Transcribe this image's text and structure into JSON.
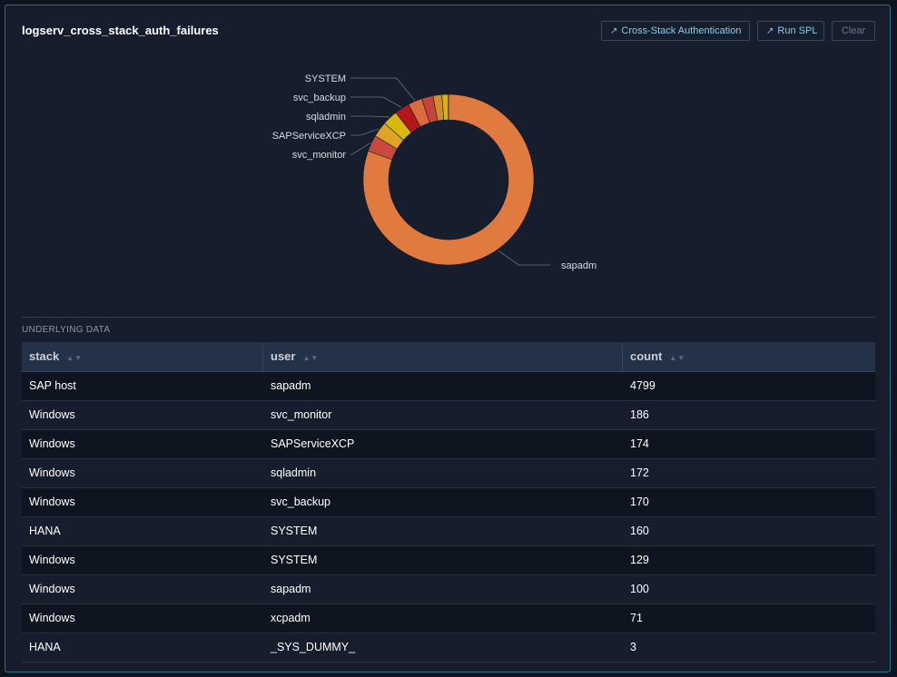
{
  "panel": {
    "title": "logserv_cross_stack_auth_failures",
    "buttons": {
      "cross_stack": "Cross-Stack Authentication",
      "run_spl": "Run SPL",
      "clear": "Clear",
      "arrow_icon": "external-link-arrow-icon"
    }
  },
  "chart_data": {
    "type": "pie",
    "style": "donut",
    "labels": [
      "sapadm",
      "svc_monitor",
      "SAPServiceXCP",
      "sqladmin",
      "svc_backup",
      "SYSTEM"
    ],
    "slices": [
      {
        "label": "sapadm",
        "value": 4799,
        "color": "#e07a3e"
      },
      {
        "label": "svc_monitor",
        "value": 186,
        "color": "#c94a3d"
      },
      {
        "label": "SAPServiceXCP",
        "value": 174,
        "color": "#e0a424"
      },
      {
        "label": "sqladmin",
        "value": 172,
        "color": "#d8b80c"
      },
      {
        "label": "svc_backup",
        "value": 170,
        "color": "#b3171c"
      },
      {
        "label": "SYSTEM",
        "value": 160,
        "color": "#db6b3c"
      },
      {
        "label": "",
        "value": 129,
        "color": "#c4443c"
      },
      {
        "label": "",
        "value": 100,
        "color": "#d38a2c"
      },
      {
        "label": "",
        "value": 71,
        "color": "#d6b410"
      },
      {
        "label": "",
        "value": 3,
        "color": "#a71a1f"
      }
    ]
  },
  "table": {
    "section_label": "UNDERLYING DATA",
    "columns": [
      "stack",
      "user",
      "count"
    ],
    "rows": [
      [
        "SAP host",
        "sapadm",
        "4799"
      ],
      [
        "Windows",
        "svc_monitor",
        "186"
      ],
      [
        "Windows",
        "SAPServiceXCP",
        "174"
      ],
      [
        "Windows",
        "sqladmin",
        "172"
      ],
      [
        "Windows",
        "svc_backup",
        "170"
      ],
      [
        "HANA",
        "SYSTEM",
        "160"
      ],
      [
        "Windows",
        "SYSTEM",
        "129"
      ],
      [
        "Windows",
        "sapadm",
        "100"
      ],
      [
        "Windows",
        "xcpadm",
        "71"
      ],
      [
        "HANA",
        "_SYS_DUMMY_",
        "3"
      ]
    ]
  }
}
